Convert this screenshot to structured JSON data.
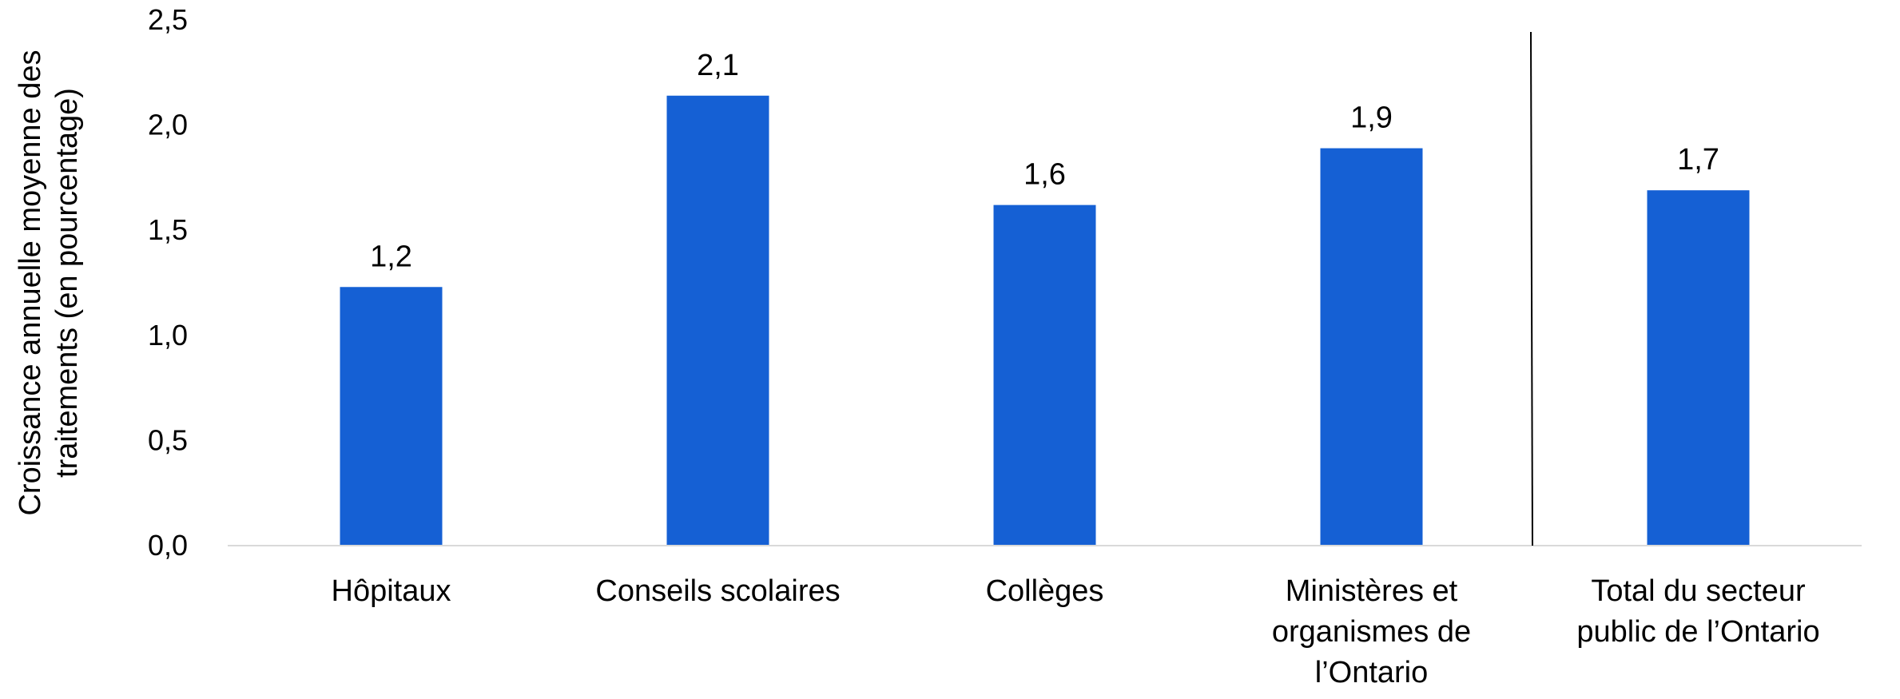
{
  "chart_data": {
    "type": "bar",
    "categories": [
      [
        "Hôpitaux"
      ],
      [
        "Conseils scolaires"
      ],
      [
        "Collèges"
      ],
      [
        "Ministères et",
        "organismes de",
        "l’Ontario"
      ],
      [
        "Total du secteur",
        "public de l’Ontario"
      ]
    ],
    "values": [
      1.23,
      2.14,
      1.62,
      1.89,
      1.69
    ],
    "data_labels": [
      "1,2",
      "2,1",
      "1,6",
      "1,9",
      "1,7"
    ],
    "ylabel": [
      "Croissance annuelle moyenne des",
      "traitements (en pourcentage)"
    ],
    "xlabel": "",
    "ylim": [
      0,
      2.5
    ],
    "yticks": [
      0,
      0.5,
      1.0,
      1.5,
      2.0,
      2.5
    ],
    "ytick_labels": [
      "0,0",
      "0,5",
      "1,0",
      "1,5",
      "2,0",
      "2,5"
    ],
    "separator_after_category": 4,
    "grid": false,
    "bar_color": "#1560D4",
    "axis_color": "#D9D9D9"
  }
}
